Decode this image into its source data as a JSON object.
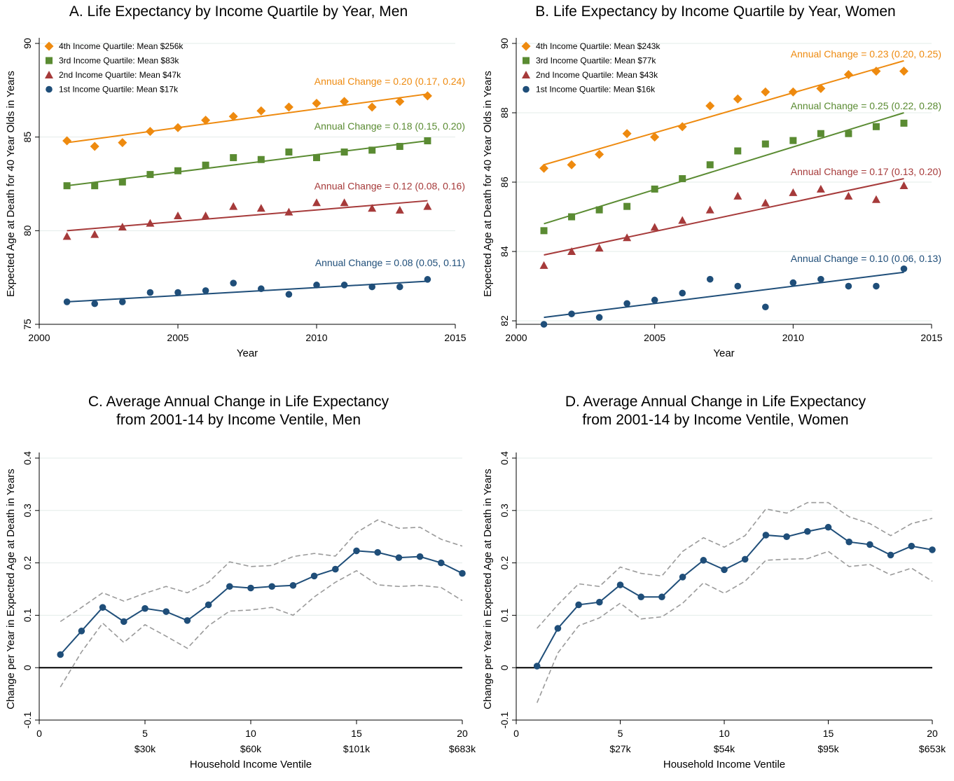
{
  "chart_data": [
    {
      "id": "A",
      "type": "scatter",
      "title": "A. Life Expectancy by Income Quartile by Year, Men",
      "xlabel": "Year",
      "ylabel": "Expected Age at Death for 40 Year Olds in Years",
      "xlim": [
        2000,
        2015
      ],
      "ylim": [
        75,
        90
      ],
      "xticks": [
        2000,
        2005,
        2010,
        2015
      ],
      "yticks": [
        75,
        80,
        85,
        90
      ],
      "grid": true,
      "legend_position": "top-left",
      "x": [
        2001,
        2002,
        2003,
        2004,
        2005,
        2006,
        2007,
        2008,
        2009,
        2010,
        2011,
        2012,
        2013,
        2014
      ],
      "series": [
        {
          "name": "4th Income Quartile: Mean $256k",
          "marker": "diamond",
          "color": "#ee8a0f",
          "values": [
            84.8,
            84.5,
            84.7,
            85.3,
            85.5,
            85.9,
            86.1,
            86.4,
            86.6,
            86.8,
            86.9,
            86.6,
            86.9,
            87.2
          ],
          "fit": [
            84.7,
            87.3
          ],
          "annotation": "Annual Change = 0.20 (0.17, 0.24)",
          "annotation_y": 87.8
        },
        {
          "name": "3rd Income Quartile: Mean $83k",
          "marker": "square",
          "color": "#5a8b32",
          "values": [
            82.4,
            82.4,
            82.6,
            83.0,
            83.2,
            83.5,
            83.9,
            83.8,
            84.2,
            83.9,
            84.2,
            84.3,
            84.5,
            84.8
          ],
          "fit": [
            82.4,
            84.8
          ],
          "annotation": "Annual Change = 0.18 (0.15, 0.20)",
          "annotation_y": 85.4
        },
        {
          "name": "2nd Income Quartile: Mean $47k",
          "marker": "triangle",
          "color": "#a63a3a",
          "values": [
            79.7,
            79.8,
            80.2,
            80.4,
            80.8,
            80.8,
            81.3,
            81.2,
            81.0,
            81.5,
            81.5,
            81.2,
            81.1,
            81.3
          ],
          "fit": [
            80.0,
            81.6
          ],
          "annotation": "Annual Change = 0.12 (0.08, 0.16)",
          "annotation_y": 82.2
        },
        {
          "name": "1st Income Quartile: Mean $17k",
          "marker": "circle",
          "color": "#1f4e79",
          "values": [
            76.2,
            76.1,
            76.2,
            76.7,
            76.7,
            76.8,
            77.2,
            76.9,
            76.6,
            77.1,
            77.1,
            77.0,
            77.0,
            77.4
          ],
          "fit": [
            76.2,
            77.3
          ],
          "annotation": "Annual Change = 0.08 (0.05, 0.11)",
          "annotation_y": 78.1
        }
      ]
    },
    {
      "id": "B",
      "type": "scatter",
      "title": "B. Life Expectancy by Income Quartile by Year, Women",
      "xlabel": "Year",
      "ylabel": "Expected Age at Death for 40 Year Olds in Years",
      "xlim": [
        2000,
        2015
      ],
      "ylim": [
        81.9,
        90
      ],
      "xticks": [
        2000,
        2005,
        2010,
        2015
      ],
      "yticks": [
        82,
        84,
        86,
        88,
        90
      ],
      "grid": true,
      "legend_position": "top-left",
      "x": [
        2001,
        2002,
        2003,
        2004,
        2005,
        2006,
        2007,
        2008,
        2009,
        2010,
        2011,
        2012,
        2013,
        2014
      ],
      "series": [
        {
          "name": "4th Income Quartile: Mean $243k",
          "marker": "diamond",
          "color": "#ee8a0f",
          "values": [
            86.4,
            86.5,
            86.8,
            87.4,
            87.3,
            87.6,
            88.2,
            88.4,
            88.6,
            88.6,
            88.7,
            89.1,
            89.2,
            89.2
          ],
          "fit": [
            86.5,
            89.5
          ],
          "annotation": "Annual Change = 0.23 (0.20, 0.25)",
          "annotation_y": 89.6
        },
        {
          "name": "3rd Income Quartile: Mean $77k",
          "marker": "square",
          "color": "#5a8b32",
          "values": [
            84.6,
            85.0,
            85.2,
            85.3,
            85.8,
            86.1,
            86.5,
            86.9,
            87.1,
            87.2,
            87.4,
            87.4,
            87.6,
            87.7
          ],
          "fit": [
            84.8,
            88.0
          ],
          "annotation": "Annual Change = 0.25 (0.22, 0.28)",
          "annotation_y": 88.1
        },
        {
          "name": "2nd Income Quartile: Mean $43k",
          "marker": "triangle",
          "color": "#a63a3a",
          "values": [
            83.6,
            84.0,
            84.1,
            84.4,
            84.7,
            84.9,
            85.2,
            85.6,
            85.4,
            85.7,
            85.8,
            85.6,
            85.5,
            85.9
          ],
          "fit": [
            83.9,
            86.1
          ],
          "annotation": "Annual Change = 0.17 (0.13, 0.20)",
          "annotation_y": 86.2
        },
        {
          "name": "1st Income Quartile: Mean $16k",
          "marker": "circle",
          "color": "#1f4e79",
          "values": [
            81.9,
            82.2,
            82.1,
            82.5,
            82.6,
            82.8,
            83.2,
            83.0,
            82.4,
            83.1,
            83.2,
            83.0,
            83.0,
            83.5
          ],
          "fit": [
            82.1,
            83.4
          ],
          "annotation": "Annual Change = 0.10 (0.06, 0.13)",
          "annotation_y": 83.7
        }
      ]
    },
    {
      "id": "C",
      "type": "line",
      "title": "C. Average Annual Change in Life Expectancy from 2001-14 by Income Ventile, Men",
      "title_lines": [
        "C. Average Annual Change in Life Expectancy",
        "from 2001-14 by Income Ventile, Men"
      ],
      "xlabel": "Household Income Ventile",
      "ylabel": "Change per Year in Expected Age at Death in Years",
      "xlim": [
        0,
        20
      ],
      "ylim": [
        -0.1,
        0.4
      ],
      "xticks": [
        0,
        5,
        10,
        15,
        20
      ],
      "xticklabels2": [
        "",
        "$30k",
        "$60k",
        "$101k",
        "$683k"
      ],
      "yticks": [
        -0.1,
        0,
        0.1,
        0.2,
        0.3,
        0.4
      ],
      "yticklabels": [
        "-0.1",
        "0",
        "0.1",
        "0.2",
        "0.3",
        "0.4"
      ],
      "grid": true,
      "x": [
        1,
        2,
        3,
        4,
        5,
        6,
        7,
        8,
        9,
        10,
        11,
        12,
        13,
        14,
        15,
        16,
        17,
        18,
        19,
        20
      ],
      "series": [
        {
          "role": "estimate",
          "color": "#1f4e79",
          "values": [
            0.025,
            0.07,
            0.115,
            0.088,
            0.113,
            0.107,
            0.09,
            0.12,
            0.155,
            0.152,
            0.155,
            0.157,
            0.175,
            0.188,
            0.223,
            0.22,
            0.21,
            0.212,
            0.2,
            0.18
          ]
        },
        {
          "role": "upper_ci",
          "color": "#9a9a9a",
          "values": [
            0.088,
            0.115,
            0.143,
            0.127,
            0.142,
            0.155,
            0.143,
            0.163,
            0.202,
            0.193,
            0.195,
            0.212,
            0.218,
            0.213,
            0.258,
            0.282,
            0.266,
            0.268,
            0.245,
            0.232
          ]
        },
        {
          "role": "lower_ci",
          "color": "#9a9a9a",
          "values": [
            -0.037,
            0.03,
            0.085,
            0.048,
            0.082,
            0.06,
            0.037,
            0.08,
            0.108,
            0.11,
            0.115,
            0.1,
            0.135,
            0.163,
            0.185,
            0.158,
            0.155,
            0.157,
            0.153,
            0.128
          ]
        }
      ]
    },
    {
      "id": "D",
      "type": "line",
      "title": "D. Average Annual Change in Life Expectancy from 2001-14 by Income Ventile, Women",
      "title_lines": [
        "D. Average Annual Change in Life Expectancy",
        "from 2001-14 by Income Ventile, Women"
      ],
      "xlabel": "Household Income Ventile",
      "ylabel": "Change per Year in Expected Age at Death in Years",
      "xlim": [
        0,
        20
      ],
      "ylim": [
        -0.1,
        0.4
      ],
      "xticks": [
        0,
        5,
        10,
        15,
        20
      ],
      "xticklabels2": [
        "",
        "$27k",
        "$54k",
        "$95k",
        "$653k"
      ],
      "yticks": [
        -0.1,
        0,
        0.1,
        0.2,
        0.3,
        0.4
      ],
      "yticklabels": [
        "-0.1",
        "0",
        "0.1",
        "0.2",
        "0.3",
        "0.4"
      ],
      "grid": true,
      "x": [
        1,
        2,
        3,
        4,
        5,
        6,
        7,
        8,
        9,
        10,
        11,
        12,
        13,
        14,
        15,
        16,
        17,
        18,
        19,
        20
      ],
      "series": [
        {
          "role": "estimate",
          "color": "#1f4e79",
          "values": [
            0.003,
            0.075,
            0.12,
            0.125,
            0.158,
            0.135,
            0.135,
            0.173,
            0.205,
            0.187,
            0.207,
            0.253,
            0.25,
            0.26,
            0.268,
            0.24,
            0.235,
            0.215,
            0.232,
            0.225
          ]
        },
        {
          "role": "upper_ci",
          "color": "#9a9a9a",
          "values": [
            0.075,
            0.12,
            0.16,
            0.155,
            0.192,
            0.18,
            0.175,
            0.222,
            0.248,
            0.23,
            0.252,
            0.303,
            0.295,
            0.315,
            0.315,
            0.288,
            0.275,
            0.252,
            0.275,
            0.285
          ]
        },
        {
          "role": "lower_ci",
          "color": "#9a9a9a",
          "values": [
            -0.067,
            0.028,
            0.08,
            0.095,
            0.123,
            0.093,
            0.097,
            0.123,
            0.162,
            0.142,
            0.165,
            0.205,
            0.207,
            0.208,
            0.222,
            0.193,
            0.197,
            0.177,
            0.19,
            0.165
          ]
        }
      ]
    }
  ]
}
